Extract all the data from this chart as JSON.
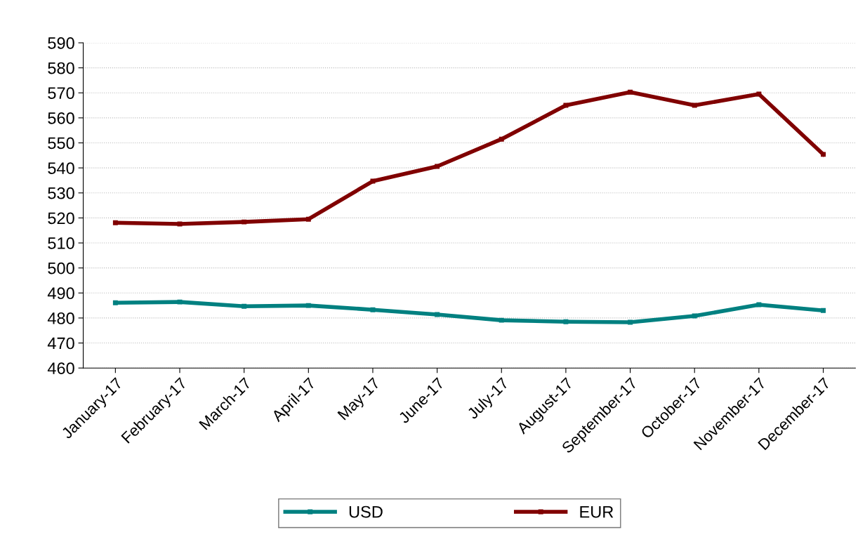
{
  "chart_data": {
    "type": "line",
    "categories": [
      "January-17",
      "February-17",
      "March-17",
      "April-17",
      "May-17",
      "June-17",
      "July-17",
      "August-17",
      "September-17",
      "October-17",
      "November-17",
      "December-17"
    ],
    "series": [
      {
        "name": "USD",
        "color": "#008080",
        "values": [
          486.1,
          486.4,
          484.7,
          485.0,
          483.3,
          481.4,
          479.1,
          478.5,
          478.3,
          480.8,
          485.3,
          483.0
        ]
      },
      {
        "name": "EUR",
        "color": "#800000",
        "values": [
          518.1,
          517.6,
          518.4,
          519.5,
          534.7,
          540.6,
          551.5,
          565.0,
          570.3,
          565.0,
          569.5,
          545.4
        ]
      }
    ],
    "ylim": [
      460,
      590
    ],
    "yticks": [
      460,
      470,
      480,
      490,
      500,
      510,
      520,
      530,
      540,
      550,
      560,
      570,
      580,
      590
    ],
    "grid": "y",
    "legend": "bottom",
    "marker": "square",
    "line_style": "solid"
  }
}
